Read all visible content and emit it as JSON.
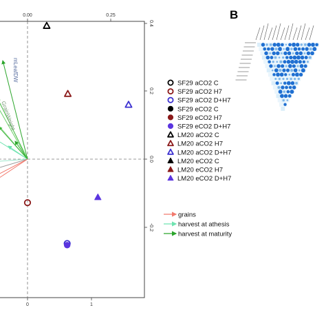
{
  "panel_b_label": "B",
  "chart_data": {
    "type": "scatter",
    "title": "",
    "xlabel": "",
    "ylabel": "",
    "top_ticks": [
      "0.00",
      "0.25"
    ],
    "right_ticks": [
      "0.4",
      "0.2",
      "0.0",
      "-0.2"
    ],
    "bottom_ticks": [
      "0",
      "1"
    ],
    "series": [
      {
        "name": "SF29 aCO2 C",
        "marker": "circle-open",
        "color": "#000000",
        "points": []
      },
      {
        "name": "SF29 aCO2 H7",
        "marker": "circle-open",
        "color": "#8b1a1a",
        "points": [
          {
            "x": 0.0,
            "y": -0.8
          }
        ]
      },
      {
        "name": "SF29 aCO2 D+H7",
        "marker": "circle-open",
        "color": "#3a2fd0",
        "points": [
          {
            "x": 0.62,
            "y": -1.55
          }
        ]
      },
      {
        "name": "SF29 eCO2 C",
        "marker": "circle-filled",
        "color": "#000000",
        "points": []
      },
      {
        "name": "SF29 eCO2 H7",
        "marker": "circle-filled",
        "color": "#8b1a1a",
        "points": []
      },
      {
        "name": "SF29 eCO2 D+H7",
        "marker": "circle-filled",
        "color": "#5b35e0",
        "points": [
          {
            "x": 0.62,
            "y": -1.58
          }
        ]
      },
      {
        "name": "LM20 aCO2 C",
        "marker": "triangle-open",
        "color": "#000000",
        "points": [
          {
            "x": 0.3,
            "y": 2.45
          }
        ]
      },
      {
        "name": "LM20 aCO2 H7",
        "marker": "triangle-open",
        "color": "#8b1a1a",
        "points": [
          {
            "x": 0.63,
            "y": 1.2
          }
        ]
      },
      {
        "name": "LM20 aCO2 D+H7",
        "marker": "triangle-open",
        "color": "#3a2fd0",
        "points": [
          {
            "x": 1.58,
            "y": 1.0
          }
        ]
      },
      {
        "name": "LM20 eCO2 C",
        "marker": "triangle-filled",
        "color": "#000000",
        "points": []
      },
      {
        "name": "LM20 eCO2 H7",
        "marker": "triangle-filled",
        "color": "#8b1a1a",
        "points": []
      },
      {
        "name": "LM20 eCO2 D+H7",
        "marker": "triangle-filled",
        "color": "#5b35e0",
        "points": [
          {
            "x": 1.1,
            "y": -0.7
          }
        ]
      }
    ],
    "loadings": [
      {
        "label": "mLeafDW",
        "group": "harvest at maturity",
        "color": "#3db83a"
      },
      {
        "label": "GrainWeight",
        "group": "harvest at maturity",
        "color": "#3db83a"
      },
      {
        "label": "",
        "group": "harvest at maturity",
        "color": "#3db83a"
      },
      {
        "label": "",
        "group": "harvest at maturity",
        "color": "#3db83a"
      },
      {
        "label": "",
        "group": "harvest at athesis",
        "color": "#6ee3b0"
      },
      {
        "label": "",
        "group": "harvest at athesis",
        "color": "#6ee3b0"
      },
      {
        "label": "",
        "group": "grains",
        "color": "#f27a6e"
      },
      {
        "label": "",
        "group": "grains",
        "color": "#9a9a9a"
      }
    ],
    "arrow_legend": [
      {
        "label": "grains",
        "color": "#f27a6e"
      },
      {
        "label": "harvest at athesis",
        "color": "#6ee3b0"
      },
      {
        "label": "harvest at maturity",
        "color": "#2aa52a"
      }
    ]
  }
}
